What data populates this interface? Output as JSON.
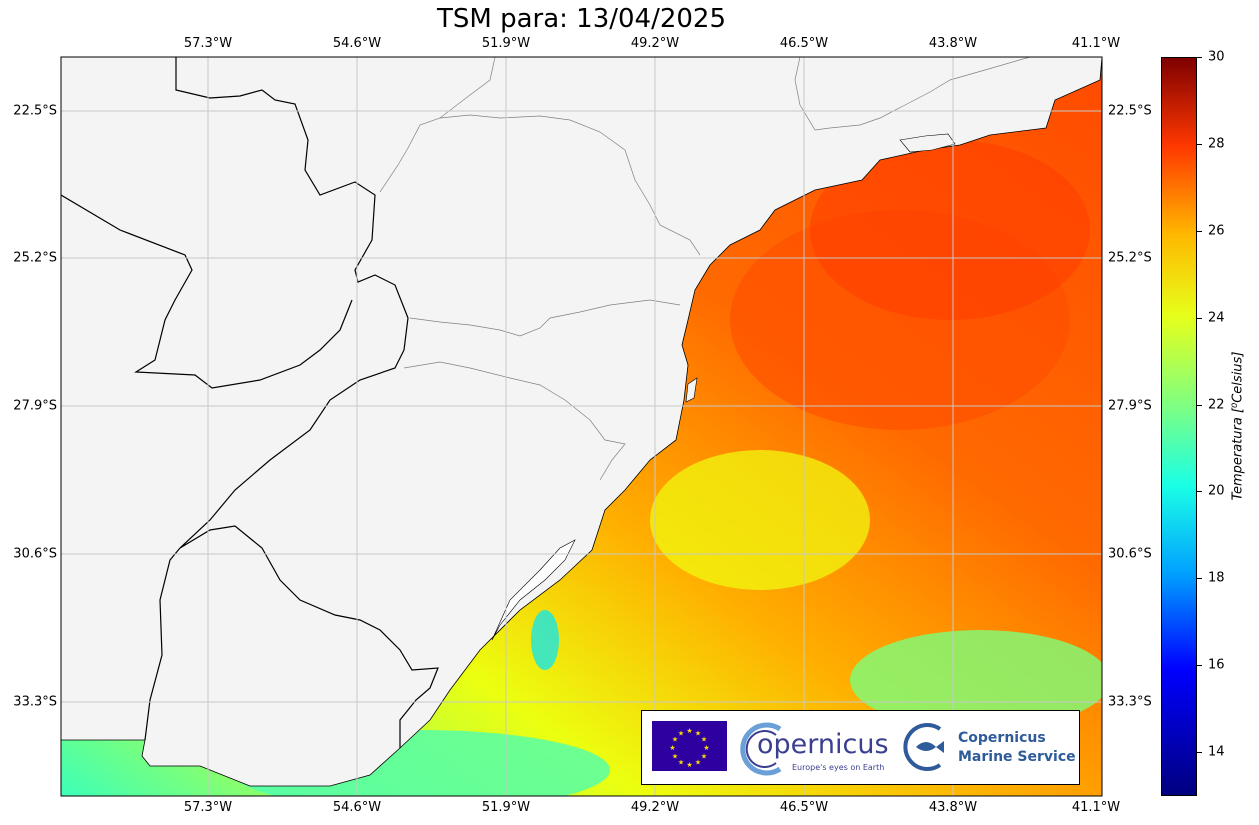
{
  "title": "TSM para: 13/04/2025",
  "map": {
    "lon_ticks": [
      "57.3°W",
      "54.6°W",
      "51.9°W",
      "49.2°W",
      "46.5°W",
      "43.8°W",
      "41.1°W"
    ],
    "lat_ticks": [
      "22.5°S",
      "25.2°S",
      "27.9°S",
      "30.6°S",
      "33.3°S"
    ],
    "ocean_field": "sea-surface-temperature",
    "land_color": "#f4f4f4",
    "grid": true
  },
  "colorbar": {
    "label": "Temperatura [$^0Celsius$]",
    "label_display": "Temperatura [⁰Celsius]",
    "ticks": [
      "14",
      "16",
      "18",
      "20",
      "22",
      "24",
      "26",
      "28",
      "30"
    ],
    "range": [
      13,
      30
    ],
    "colormap": "jet"
  },
  "logos": {
    "eu": "eu-flag",
    "copernicus_word": "opernicus",
    "copernicus_tag": "Europe's eyes on Earth",
    "cms_line1": "Copernicus",
    "cms_line2": "Marine Service"
  }
}
